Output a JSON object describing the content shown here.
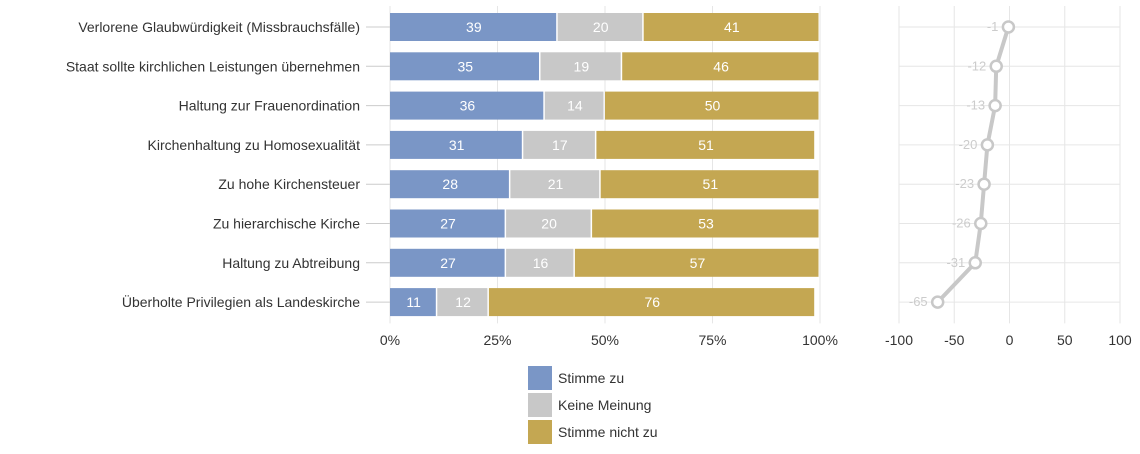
{
  "chart_data": [
    {
      "type": "bar",
      "orientation": "horizontal",
      "stacked": true,
      "normalized": true,
      "categories": [
        "Verlorene Glaubwürdigkeit (Missbrauchsfälle)",
        "Staat sollte kirchlichen Leistungen übernehmen",
        "Haltung zur Frauenordination",
        "Kirchenhaltung zu Homosexualität",
        "Zu hohe Kirchensteuer",
        "Zu hierarchische Kirche",
        "Haltung zu Abtreibung",
        "Überholte Privilegien als Landeskirche"
      ],
      "series": [
        {
          "name": "Stimme zu",
          "color": "#7a96c6",
          "values": [
            39,
            35,
            36,
            31,
            28,
            27,
            27,
            11
          ]
        },
        {
          "name": "Keine Meinung",
          "color": "#c8c8c8",
          "values": [
            20,
            19,
            14,
            17,
            21,
            20,
            16,
            12
          ]
        },
        {
          "name": "Stimme nicht zu",
          "color": "#c4a752",
          "values": [
            41,
            46,
            50,
            51,
            51,
            53,
            57,
            76
          ]
        }
      ],
      "xlim": [
        0,
        100
      ],
      "xticks": [
        "0%",
        "25%",
        "50%",
        "75%",
        "100%"
      ],
      "data_labels": true,
      "legend_position": "bottom"
    },
    {
      "type": "line",
      "points": [
        -1,
        -12,
        -13,
        -20,
        -23,
        -26,
        -31,
        -65
      ],
      "point_labels": [
        "-1",
        "-12",
        "-13",
        "-20",
        "-23",
        "-26",
        "-31",
        "-65"
      ],
      "xlim": [
        -100,
        100
      ],
      "xticks": [
        "-100",
        "-50",
        "0",
        "50",
        "100"
      ],
      "color": "#c8c8c8",
      "grid": true
    }
  ]
}
